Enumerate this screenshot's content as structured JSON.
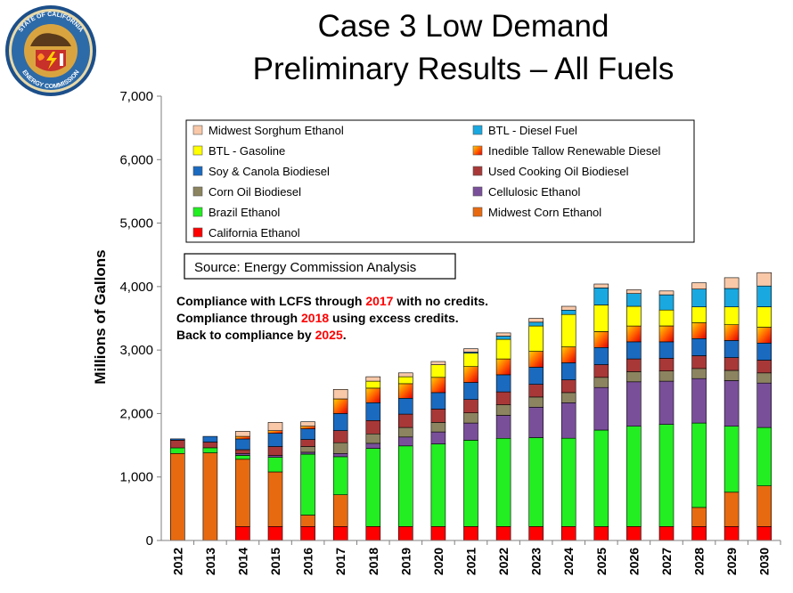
{
  "slide": {
    "title_line1": "Case 3 Low Demand",
    "title_line2": "Preliminary Results – All Fuels",
    "seal_text_top": "STATE OF CALIFORNIA",
    "seal_text_bottom": "ENERGY COMMISSION"
  },
  "chart_data": {
    "type": "bar",
    "stacked": true,
    "ylabel": "Millions of Gallons",
    "xlabel": "",
    "ylim": [
      0,
      7000
    ],
    "yticks": [
      0,
      1000,
      2000,
      3000,
      4000,
      5000,
      6000,
      7000
    ],
    "ytick_labels": [
      "0",
      "1,000",
      "2,000",
      "3,000",
      "4,000",
      "5,000",
      "6,000",
      "7,000"
    ],
    "grid": false,
    "legend_placement": "top",
    "categories": [
      "2012",
      "2013",
      "2014",
      "2015",
      "2016",
      "2017",
      "2018",
      "2019",
      "2020",
      "2021",
      "2022",
      "2023",
      "2024",
      "2025",
      "2026",
      "2027",
      "2028",
      "2029",
      "2030"
    ],
    "source_note": "Source: Energy Commission Analysis",
    "annotation": [
      [
        {
          "text": "Compliance with LCFS through "
        },
        {
          "text": "2017",
          "red": true
        },
        {
          "text": " with no credits."
        }
      ],
      [
        {
          "text": "Compliance through "
        },
        {
          "text": "2018",
          "red": true
        },
        {
          "text": " using excess credits."
        }
      ],
      [
        {
          "text": "Back to compliance by "
        },
        {
          "text": "2025",
          "red": true
        },
        {
          "text": "."
        }
      ]
    ],
    "legend_order": [
      "Midwest Sorghum Ethanol",
      "BTL - Diesel Fuel",
      "BTL - Gasoline",
      "Inedible Tallow Renewable Diesel",
      "Soy & Canola Biodiesel",
      "Used Cooking Oil Biodiesel",
      "Corn Oil Biodiesel",
      "Cellulosic Ethanol",
      "Brazil Ethanol",
      "Midwest Corn Ethanol",
      "California Ethanol"
    ],
    "series": [
      {
        "name": "California Ethanol",
        "color": "#ff0000",
        "values": [
          0,
          0,
          220,
          220,
          220,
          220,
          220,
          220,
          220,
          220,
          220,
          220,
          220,
          220,
          220,
          220,
          220,
          220,
          220
        ]
      },
      {
        "name": "Midwest Corn Ethanol",
        "color": "#e86a10",
        "values": [
          1370,
          1380,
          1060,
          860,
          180,
          500,
          0,
          0,
          0,
          0,
          0,
          0,
          0,
          0,
          0,
          0,
          300,
          540,
          640
        ]
      },
      {
        "name": "Brazil Ethanol",
        "color": "#22ee22",
        "values": [
          90,
          80,
          60,
          230,
          960,
          600,
          1230,
          1270,
          1300,
          1360,
          1390,
          1400,
          1390,
          1520,
          1580,
          1610,
          1330,
          1040,
          920
        ]
      },
      {
        "name": "Cellulosic Ethanol",
        "color": "#7a4f9a",
        "values": [
          0,
          0,
          30,
          30,
          30,
          50,
          80,
          140,
          190,
          270,
          360,
          480,
          560,
          670,
          700,
          680,
          700,
          720,
          700
        ]
      },
      {
        "name": "Corn Oil Biodiesel",
        "color": "#8c8460",
        "values": [
          0,
          0,
          0,
          0,
          90,
          170,
          150,
          150,
          150,
          160,
          170,
          160,
          160,
          160,
          160,
          160,
          160,
          160,
          160
        ]
      },
      {
        "name": "Used Cooking Oil Biodiesel",
        "color": "#a83838",
        "values": [
          120,
          90,
          60,
          140,
          110,
          190,
          210,
          210,
          210,
          210,
          200,
          200,
          200,
          200,
          200,
          200,
          200,
          200,
          200
        ]
      },
      {
        "name": "Soy & Canola Biodiesel",
        "color": "#1a6ac0",
        "values": [
          20,
          90,
          170,
          210,
          170,
          270,
          280,
          250,
          260,
          270,
          270,
          270,
          270,
          270,
          270,
          260,
          270,
          270,
          270
        ]
      },
      {
        "name": "Inedible Tallow Renewable Diesel",
        "color": "#f04020",
        "values": [
          0,
          0,
          40,
          40,
          40,
          230,
          230,
          230,
          240,
          250,
          250,
          250,
          250,
          250,
          250,
          250,
          250,
          250,
          250
        ]
      },
      {
        "name": "BTL - Gasoline",
        "color": "#ffff00",
        "values": [
          0,
          0,
          0,
          0,
          0,
          0,
          110,
          110,
          200,
          210,
          310,
          400,
          510,
          420,
          310,
          250,
          250,
          280,
          320
        ]
      },
      {
        "name": "BTL - Diesel Fuel",
        "color": "#1aa8e0",
        "values": [
          0,
          0,
          0,
          0,
          0,
          0,
          0,
          0,
          0,
          20,
          50,
          60,
          70,
          270,
          200,
          240,
          280,
          290,
          330
        ]
      },
      {
        "name": "Midwest Sorghum Ethanol",
        "color": "#f8c8a8",
        "values": [
          0,
          0,
          80,
          130,
          70,
          150,
          70,
          60,
          50,
          50,
          50,
          60,
          60,
          60,
          60,
          60,
          100,
          170,
          210
        ]
      }
    ]
  }
}
